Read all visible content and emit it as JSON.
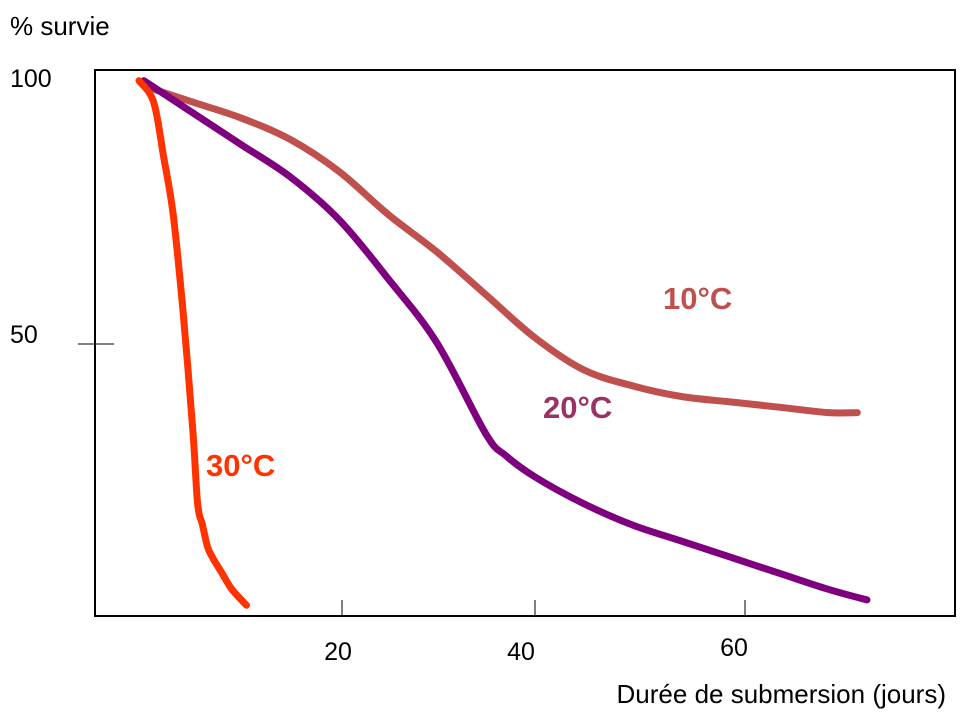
{
  "chart_data": {
    "type": "line",
    "ylabel": "% survie",
    "xlabel": "Durée de submersion (jours)",
    "x_ticks": [
      20,
      40,
      60
    ],
    "y_ticks": [
      100,
      50
    ],
    "xlim": [
      -5,
      83
    ],
    "ylim": [
      0,
      102
    ],
    "grid": false,
    "series": [
      {
        "name": "10°C",
        "color": "#c0504d",
        "x": [
          0,
          5,
          10,
          15,
          20,
          25,
          30,
          35,
          40,
          45,
          50,
          55,
          60,
          65,
          70,
          73
        ],
        "y": [
          99,
          96,
          93,
          89,
          83,
          75,
          68,
          60,
          52,
          46,
          43,
          41,
          40,
          39,
          38,
          38
        ]
      },
      {
        "name": "20°C",
        "color": "#7f007f",
        "x": [
          0,
          5,
          10,
          15,
          20,
          25,
          30,
          35,
          37,
          40,
          45,
          50,
          55,
          60,
          65,
          70,
          74
        ],
        "y": [
          100,
          94,
          88,
          82,
          74,
          63,
          51,
          34,
          30,
          26,
          21,
          17,
          14,
          11,
          8,
          5,
          3
        ]
      },
      {
        "name": "30°C",
        "color": "#ff3300",
        "x": [
          -0.5,
          1,
          2,
          3,
          4,
          5,
          5.5,
          6,
          6.5,
          7,
          8,
          9,
          10.5
        ],
        "y": [
          100,
          96,
          86,
          75,
          57,
          35,
          21,
          17,
          13,
          11,
          8,
          5,
          2
        ]
      }
    ]
  },
  "series_labels": {
    "s10": "10°C",
    "s20": "20°C",
    "s30": "30°C"
  }
}
